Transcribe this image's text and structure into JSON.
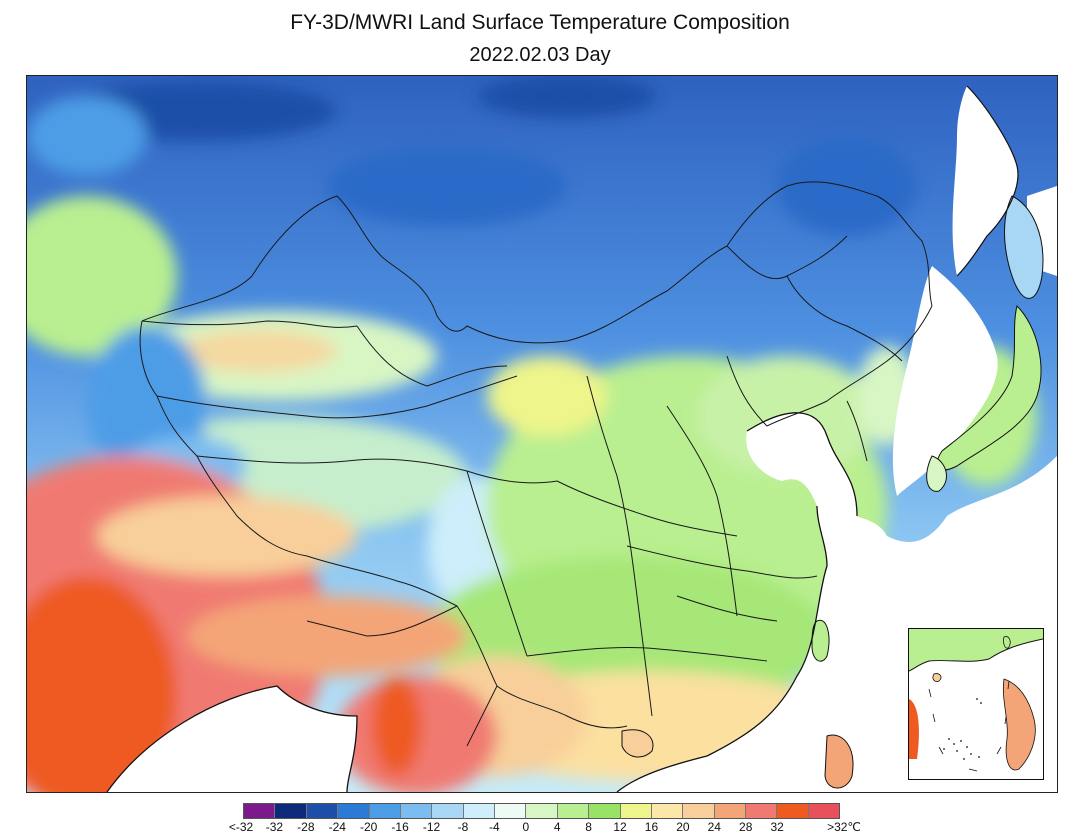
{
  "title": "FY-3D/MWRI Land Surface Temperature Composition",
  "subtitle": "2022.02.03 Day",
  "legend": {
    "unit": "℃",
    "colors": [
      "#7b1a8a",
      "#0d2a7a",
      "#1e4fa8",
      "#2b7ad6",
      "#4d9de6",
      "#7cbcf0",
      "#a8d6f5",
      "#cdeefa",
      "#eefaf4",
      "#d8f6c4",
      "#b9ef90",
      "#98e266",
      "#eef58a",
      "#fbe8a8",
      "#f8cf9a",
      "#f4a577",
      "#f07a72",
      "#ee5a20",
      "#e8505a"
    ],
    "labels": [
      "<-32",
      "-32",
      "-28",
      "-24",
      "-20",
      "-16",
      "-12",
      "-8",
      "-4",
      "0",
      "4",
      "8",
      "12",
      "16",
      "20",
      "24",
      "28",
      "32",
      ">32℃"
    ]
  }
}
